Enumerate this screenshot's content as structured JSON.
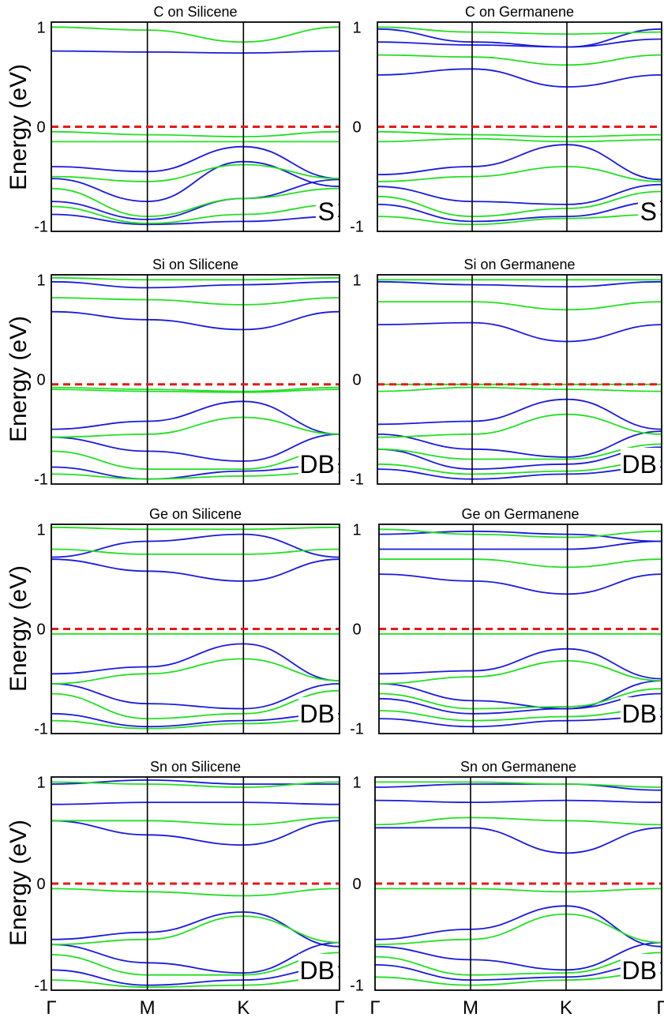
{
  "figure": {
    "ylabel": "Energy (eV)",
    "xticks": [
      "Γ",
      "M",
      "K",
      "Γ"
    ],
    "yticks": [
      "1",
      "0",
      "-1"
    ],
    "colors": {
      "spin_up": "#1a1adc",
      "spin_down": "#22e022",
      "fermi": "#e81818",
      "frame": "#000000"
    }
  },
  "chart_data": [
    {
      "type": "line",
      "title": "C on Silicene",
      "tag": "S",
      "ylim": [
        -1.05,
        1.05
      ],
      "xticks": [
        "Γ",
        "M",
        "K",
        "Γ"
      ],
      "fermi_level": 0,
      "ylabel": "Energy (eV)",
      "series": [
        {
          "name": "up",
          "color": "#1a1adc",
          "bands": [
            [
              0.76,
              0.75,
              0.74,
              0.76
            ],
            [
              -0.4,
              -0.45,
              -0.2,
              -0.52
            ],
            [
              -0.52,
              -0.75,
              -0.35,
              -0.6
            ],
            [
              -0.75,
              -0.93,
              -0.72,
              -0.53
            ],
            [
              -0.88,
              -0.98,
              -0.95,
              -0.9
            ]
          ]
        },
        {
          "name": "down",
          "color": "#22e022",
          "bands": [
            [
              1.0,
              0.97,
              0.85,
              1.0
            ],
            [
              -0.05,
              -0.08,
              -0.1,
              -0.05
            ],
            [
              -0.15,
              -0.15,
              -0.15,
              -0.15
            ],
            [
              -0.5,
              -0.55,
              -0.38,
              -0.52
            ],
            [
              -0.62,
              -0.9,
              -0.72,
              -0.62
            ],
            [
              -0.8,
              -0.97,
              -0.88,
              -0.78
            ]
          ]
        }
      ]
    },
    {
      "type": "line",
      "title": "C on Germanene",
      "tag": "S",
      "ylim": [
        -1.05,
        1.05
      ],
      "xticks": [
        "Γ",
        "M",
        "K",
        "Γ"
      ],
      "fermi_level": 0,
      "ylabel": "Energy (eV)",
      "series": [
        {
          "name": "up",
          "color": "#1a1adc",
          "bands": [
            [
              0.98,
              0.85,
              0.8,
              0.98
            ],
            [
              0.85,
              0.82,
              0.8,
              0.88
            ],
            [
              0.52,
              0.58,
              0.4,
              0.52
            ],
            [
              -0.48,
              -0.4,
              -0.18,
              -0.53
            ],
            [
              -0.6,
              -0.75,
              -0.78,
              -0.58
            ],
            [
              -0.78,
              -0.95,
              -0.9,
              -0.75
            ]
          ]
        },
        {
          "name": "down",
          "color": "#22e022",
          "bands": [
            [
              1.0,
              0.95,
              0.93,
              0.95
            ],
            [
              0.72,
              0.7,
              0.62,
              0.72
            ],
            [
              -0.05,
              -0.08,
              -0.1,
              -0.08
            ],
            [
              -0.15,
              -0.12,
              -0.15,
              -0.13
            ],
            [
              -0.55,
              -0.5,
              -0.4,
              -0.55
            ],
            [
              -0.7,
              -0.9,
              -0.82,
              -0.65
            ],
            [
              -0.9,
              -0.98,
              -0.92,
              -0.88
            ]
          ]
        }
      ]
    },
    {
      "type": "line",
      "title": "Si on Silicene",
      "tag": "DB",
      "ylim": [
        -1.05,
        1.05
      ],
      "xticks": [
        "Γ",
        "M",
        "K",
        "Γ"
      ],
      "fermi_level": -0.05,
      "ylabel": "Energy (eV)",
      "series": [
        {
          "name": "up",
          "color": "#1a1adc",
          "bands": [
            [
              0.98,
              0.92,
              0.95,
              0.98
            ],
            [
              0.68,
              0.6,
              0.5,
              0.68
            ],
            [
              -0.5,
              -0.42,
              -0.22,
              -0.55
            ],
            [
              -0.58,
              -0.72,
              -0.82,
              -0.55
            ],
            [
              -0.88,
              -1.0,
              -0.92,
              -0.85
            ]
          ]
        },
        {
          "name": "down",
          "color": "#22e022",
          "bands": [
            [
              1.02,
              1.0,
              1.0,
              1.02
            ],
            [
              0.82,
              0.8,
              0.75,
              0.82
            ],
            [
              -0.08,
              -0.1,
              -0.12,
              -0.08
            ],
            [
              -0.1,
              -0.12,
              -0.13,
              -0.1
            ],
            [
              -0.58,
              -0.55,
              -0.38,
              -0.55
            ],
            [
              -0.72,
              -0.9,
              -0.9,
              -0.7
            ],
            [
              -0.95,
              -1.0,
              -0.97,
              -0.93
            ]
          ]
        }
      ]
    },
    {
      "type": "line",
      "title": "Si on Germanene",
      "tag": "DB",
      "ylim": [
        -1.05,
        1.05
      ],
      "xticks": [
        "Γ",
        "M",
        "K",
        "Γ"
      ],
      "fermi_level": -0.05,
      "ylabel": "Energy (eV)",
      "series": [
        {
          "name": "up",
          "color": "#1a1adc",
          "bands": [
            [
              0.98,
              0.95,
              0.93,
              0.98
            ],
            [
              0.55,
              0.57,
              0.38,
              0.55
            ],
            [
              -0.45,
              -0.42,
              -0.2,
              -0.5
            ],
            [
              -0.55,
              -0.7,
              -0.78,
              -0.52
            ],
            [
              -0.7,
              -0.9,
              -0.85,
              -0.68
            ],
            [
              -0.9,
              -1.0,
              -0.95,
              -0.88
            ]
          ]
        },
        {
          "name": "down",
          "color": "#22e022",
          "bands": [
            [
              1.0,
              1.0,
              1.0,
              1.0
            ],
            [
              0.78,
              0.78,
              0.7,
              0.78
            ],
            [
              -0.05,
              -0.05,
              -0.05,
              -0.05
            ],
            [
              -0.12,
              -0.08,
              -0.1,
              -0.12
            ],
            [
              -0.58,
              -0.55,
              -0.35,
              -0.55
            ],
            [
              -0.7,
              -0.8,
              -0.8,
              -0.65
            ],
            [
              -0.85,
              -0.95,
              -0.92,
              -0.82
            ]
          ]
        }
      ]
    },
    {
      "type": "line",
      "title": "Ge on Silicene",
      "tag": "DB",
      "ylim": [
        -1.05,
        1.05
      ],
      "xticks": [
        "Γ",
        "M",
        "K",
        "Γ"
      ],
      "fermi_level": 0,
      "ylabel": "Energy (eV)",
      "series": [
        {
          "name": "up",
          "color": "#1a1adc",
          "bands": [
            [
              0.72,
              0.88,
              0.95,
              0.72
            ],
            [
              0.7,
              0.58,
              0.48,
              0.7
            ],
            [
              -0.45,
              -0.38,
              -0.15,
              -0.52
            ],
            [
              -0.55,
              -0.75,
              -0.8,
              -0.55
            ],
            [
              -0.85,
              -0.98,
              -0.92,
              -0.85
            ]
          ]
        },
        {
          "name": "down",
          "color": "#22e022",
          "bands": [
            [
              1.02,
              1.0,
              1.0,
              1.02
            ],
            [
              0.8,
              0.75,
              0.75,
              0.8
            ],
            [
              -0.05,
              -0.05,
              -0.05,
              -0.05
            ],
            [
              -0.55,
              -0.45,
              -0.3,
              -0.52
            ],
            [
              -0.65,
              -0.9,
              -0.85,
              -0.62
            ],
            [
              -0.92,
              -1.0,
              -0.95,
              -0.9
            ]
          ]
        }
      ]
    },
    {
      "type": "line",
      "title": "Ge on Germanene",
      "tag": "DB",
      "ylim": [
        -1.05,
        1.05
      ],
      "xticks": [
        "Γ",
        "M",
        "K",
        "Γ"
      ],
      "fermi_level": 0,
      "ylabel": "Energy (eV)",
      "series": [
        {
          "name": "up",
          "color": "#1a1adc",
          "bands": [
            [
              0.95,
              0.98,
              0.95,
              0.88
            ],
            [
              0.8,
              0.8,
              0.8,
              0.88
            ],
            [
              0.55,
              0.48,
              0.35,
              0.55
            ],
            [
              -0.45,
              -0.42,
              -0.2,
              -0.5
            ],
            [
              -0.55,
              -0.72,
              -0.8,
              -0.52
            ],
            [
              -0.7,
              -0.85,
              -0.8,
              -0.65
            ],
            [
              -0.9,
              -0.98,
              -0.92,
              -0.88
            ]
          ]
        },
        {
          "name": "down",
          "color": "#22e022",
          "bands": [
            [
              1.0,
              0.95,
              0.92,
              0.98
            ],
            [
              0.7,
              0.7,
              0.62,
              0.7
            ],
            [
              -0.05,
              -0.05,
              -0.05,
              -0.05
            ],
            [
              -0.55,
              -0.48,
              -0.32,
              -0.52
            ],
            [
              -0.65,
              -0.8,
              -0.78,
              -0.6
            ],
            [
              -0.82,
              -0.92,
              -0.88,
              -0.8
            ]
          ]
        }
      ]
    },
    {
      "type": "line",
      "title": "Sn on Silicene",
      "tag": "DB",
      "ylim": [
        -1.05,
        1.05
      ],
      "xticks": [
        "Γ",
        "M",
        "K",
        "Γ"
      ],
      "fermi_level": 0,
      "ylabel": "Energy (eV)",
      "series": [
        {
          "name": "up",
          "color": "#1a1adc",
          "bands": [
            [
              0.98,
              1.02,
              0.98,
              0.98
            ],
            [
              0.78,
              0.8,
              0.8,
              0.78
            ],
            [
              0.62,
              0.48,
              0.38,
              0.62
            ],
            [
              -0.55,
              -0.48,
              -0.28,
              -0.62
            ],
            [
              -0.6,
              -0.78,
              -0.88,
              -0.58
            ],
            [
              -0.85,
              -1.0,
              -0.95,
              -0.82
            ]
          ]
        },
        {
          "name": "down",
          "color": "#22e022",
          "bands": [
            [
              1.0,
              0.98,
              0.95,
              1.0
            ],
            [
              0.62,
              0.62,
              0.58,
              0.65
            ],
            [
              -0.05,
              -0.08,
              -0.12,
              -0.05
            ],
            [
              -0.6,
              -0.55,
              -0.32,
              -0.58
            ],
            [
              -0.7,
              -0.9,
              -0.9,
              -0.68
            ],
            [
              -0.95,
              -1.02,
              -1.0,
              -0.92
            ]
          ]
        }
      ]
    },
    {
      "type": "line",
      "title": "Sn on Germanene",
      "tag": "DB",
      "ylim": [
        -1.05,
        1.05
      ],
      "xticks": [
        "Γ",
        "M",
        "K",
        "Γ"
      ],
      "fermi_level": 0,
      "ylabel": "Energy (eV)",
      "series": [
        {
          "name": "up",
          "color": "#1a1adc",
          "bands": [
            [
              0.95,
              0.98,
              0.98,
              0.92
            ],
            [
              0.82,
              0.8,
              0.82,
              0.8
            ],
            [
              0.55,
              0.55,
              0.3,
              0.55
            ],
            [
              -0.55,
              -0.45,
              -0.22,
              -0.62
            ],
            [
              -0.62,
              -0.75,
              -0.85,
              -0.58
            ],
            [
              -0.8,
              -0.95,
              -0.92,
              -0.78
            ]
          ]
        },
        {
          "name": "down",
          "color": "#22e022",
          "bands": [
            [
              1.0,
              1.0,
              0.98,
              0.95
            ],
            [
              0.58,
              0.65,
              0.62,
              0.58
            ],
            [
              -0.05,
              -0.05,
              -0.08,
              -0.05
            ],
            [
              -0.6,
              -0.55,
              -0.3,
              -0.58
            ],
            [
              -0.72,
              -0.9,
              -0.88,
              -0.68
            ],
            [
              -0.92,
              -1.0,
              -0.95,
              -0.88
            ]
          ]
        }
      ]
    }
  ]
}
